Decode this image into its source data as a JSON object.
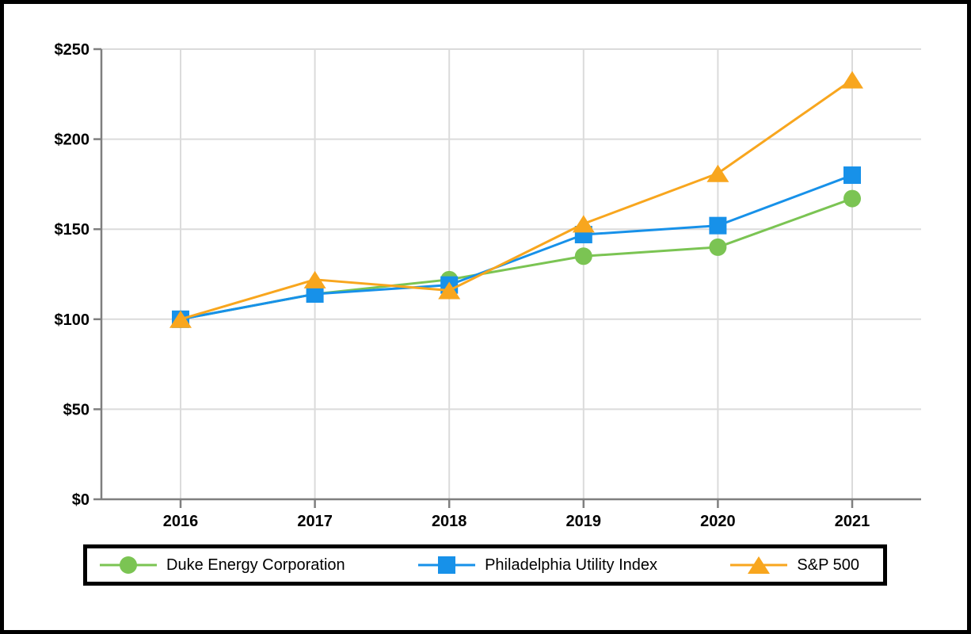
{
  "chart_data": {
    "type": "line",
    "categories": [
      "2016",
      "2017",
      "2018",
      "2019",
      "2020",
      "2021"
    ],
    "series": [
      {
        "name": "Duke Energy Corporation",
        "marker": "circle",
        "color": "#7BC453",
        "values": [
          100,
          114,
          122,
          135,
          140,
          167
        ]
      },
      {
        "name": "Philadelphia Utility Index",
        "marker": "square",
        "color": "#1791E9",
        "values": [
          100,
          114,
          119,
          147,
          152,
          180
        ]
      },
      {
        "name": "S&P 500",
        "marker": "triangle",
        "color": "#F8A61E",
        "values": [
          100,
          122,
          116,
          153,
          181,
          233
        ]
      }
    ],
    "title": "",
    "xlabel": "",
    "ylabel": "",
    "ylim": [
      0,
      250
    ],
    "ytick_step": 50,
    "ytick_labels": [
      "$0",
      "$50",
      "$100",
      "$150",
      "$200",
      "$250"
    ],
    "grid": true,
    "legend_position": "bottom",
    "colors": {
      "axis": "#7F7F7F",
      "grid": "#DBDBDB",
      "tick_label": "#000000",
      "frame_border": "#000000",
      "background": "#FFFFFF"
    }
  }
}
